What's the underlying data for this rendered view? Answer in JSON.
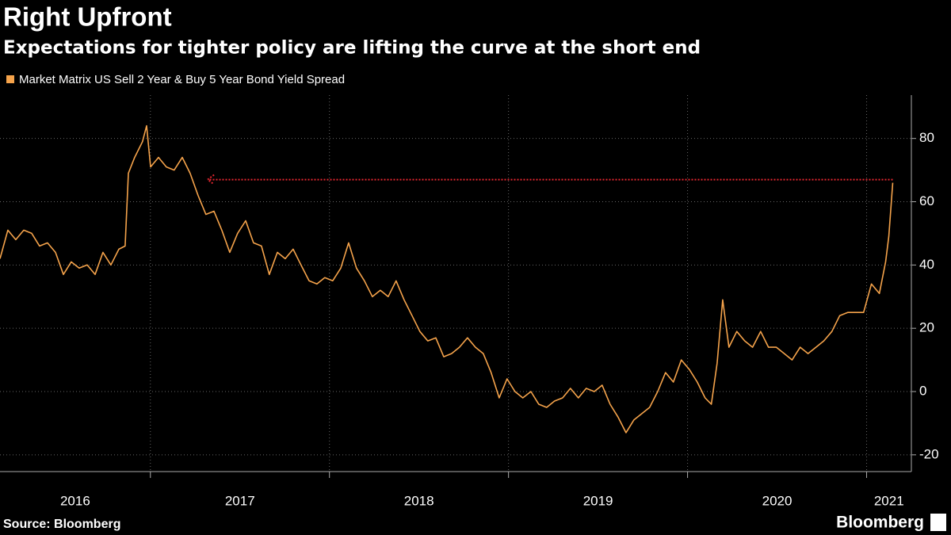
{
  "chart_data": {
    "type": "line",
    "title": "Right Upfront",
    "subtitle": "Expectations for tighter policy are lifting the curve at the short end",
    "source": "Source: Bloomberg",
    "brand": "Bloomberg",
    "series": [
      {
        "name": "Market Matrix US Sell 2 Year & Buy 5 Year Bond Yield Spread",
        "color": "#f5a34b",
        "x": [
          2016.16,
          2016.204,
          2016.248,
          2016.293,
          2016.337,
          2016.381,
          2016.425,
          2016.47,
          2016.514,
          2016.558,
          2016.602,
          2016.647,
          2016.691,
          2016.735,
          2016.779,
          2016.824,
          2016.859,
          2016.877,
          2016.912,
          2016.956,
          2016.979,
          2017.001,
          2017.045,
          2017.089,
          2017.133,
          2017.178,
          2017.222,
          2017.266,
          2017.31,
          2017.355,
          2017.399,
          2017.443,
          2017.487,
          2017.532,
          2017.576,
          2017.62,
          2017.664,
          2017.709,
          2017.753,
          2017.797,
          2017.841,
          2017.886,
          2017.93,
          2017.974,
          2018.018,
          2018.063,
          2018.107,
          2018.151,
          2018.195,
          2018.24,
          2018.284,
          2018.328,
          2018.372,
          2018.417,
          2018.461,
          2018.505,
          2018.549,
          2018.594,
          2018.638,
          2018.682,
          2018.726,
          2018.771,
          2018.815,
          2018.859,
          2018.903,
          2018.948,
          2018.992,
          2019.036,
          2019.08,
          2019.125,
          2019.169,
          2019.213,
          2019.257,
          2019.302,
          2019.346,
          2019.39,
          2019.434,
          2019.479,
          2019.523,
          2019.567,
          2019.611,
          2019.656,
          2019.7,
          2019.744,
          2019.788,
          2019.833,
          2019.877,
          2019.921,
          2019.965,
          2020.01,
          2020.054,
          2020.098,
          2020.133,
          2020.165,
          2020.196,
          2020.231,
          2020.275,
          2020.319,
          2020.363,
          2020.408,
          2020.452,
          2020.496,
          2020.54,
          2020.584,
          2020.629,
          2020.673,
          2020.717,
          2020.761,
          2020.806,
          2020.85,
          2020.894,
          2020.938,
          2020.983,
          2021.027,
          2021.071,
          2021.106,
          2021.124,
          2021.146
        ],
        "values": [
          42,
          51,
          48,
          51,
          50,
          46,
          47,
          44,
          37,
          41,
          39,
          40,
          37,
          44,
          40,
          45,
          46,
          69,
          74,
          79,
          84,
          71,
          74,
          71,
          70,
          74,
          69,
          62,
          56,
          57,
          51,
          44,
          50,
          54,
          47,
          46,
          37,
          44,
          42,
          45,
          40,
          35,
          34,
          36,
          35,
          39,
          47,
          39,
          35,
          30,
          32,
          30,
          35,
          29,
          24,
          19,
          16,
          17,
          11,
          12,
          14,
          17,
          14,
          12,
          6,
          -2,
          4,
          0,
          -2,
          0,
          -4,
          -5,
          -3,
          -2,
          1,
          -2,
          1,
          0,
          2,
          -4,
          -8,
          -13,
          -9,
          -7,
          -5,
          0,
          6,
          3,
          10,
          7,
          3,
          -2,
          -4,
          9,
          29,
          14,
          19,
          16,
          14,
          19,
          14,
          14,
          12,
          10,
          14,
          12,
          14,
          16,
          19,
          24,
          25,
          25,
          25,
          34,
          31,
          41,
          49,
          66
        ]
      }
    ],
    "arrow": {
      "x": [
        2021.146,
        2017.32
      ],
      "y": 67,
      "color": "#e3262f"
    },
    "xlim": [
      2016.16,
      2021.25
    ],
    "xticks": [
      2016,
      2017,
      2018,
      2019,
      2020,
      2021
    ],
    "ylim": [
      -25.3,
      93.7
    ],
    "yticks": [
      -20,
      0,
      20,
      40,
      60,
      80
    ],
    "grid": true
  }
}
